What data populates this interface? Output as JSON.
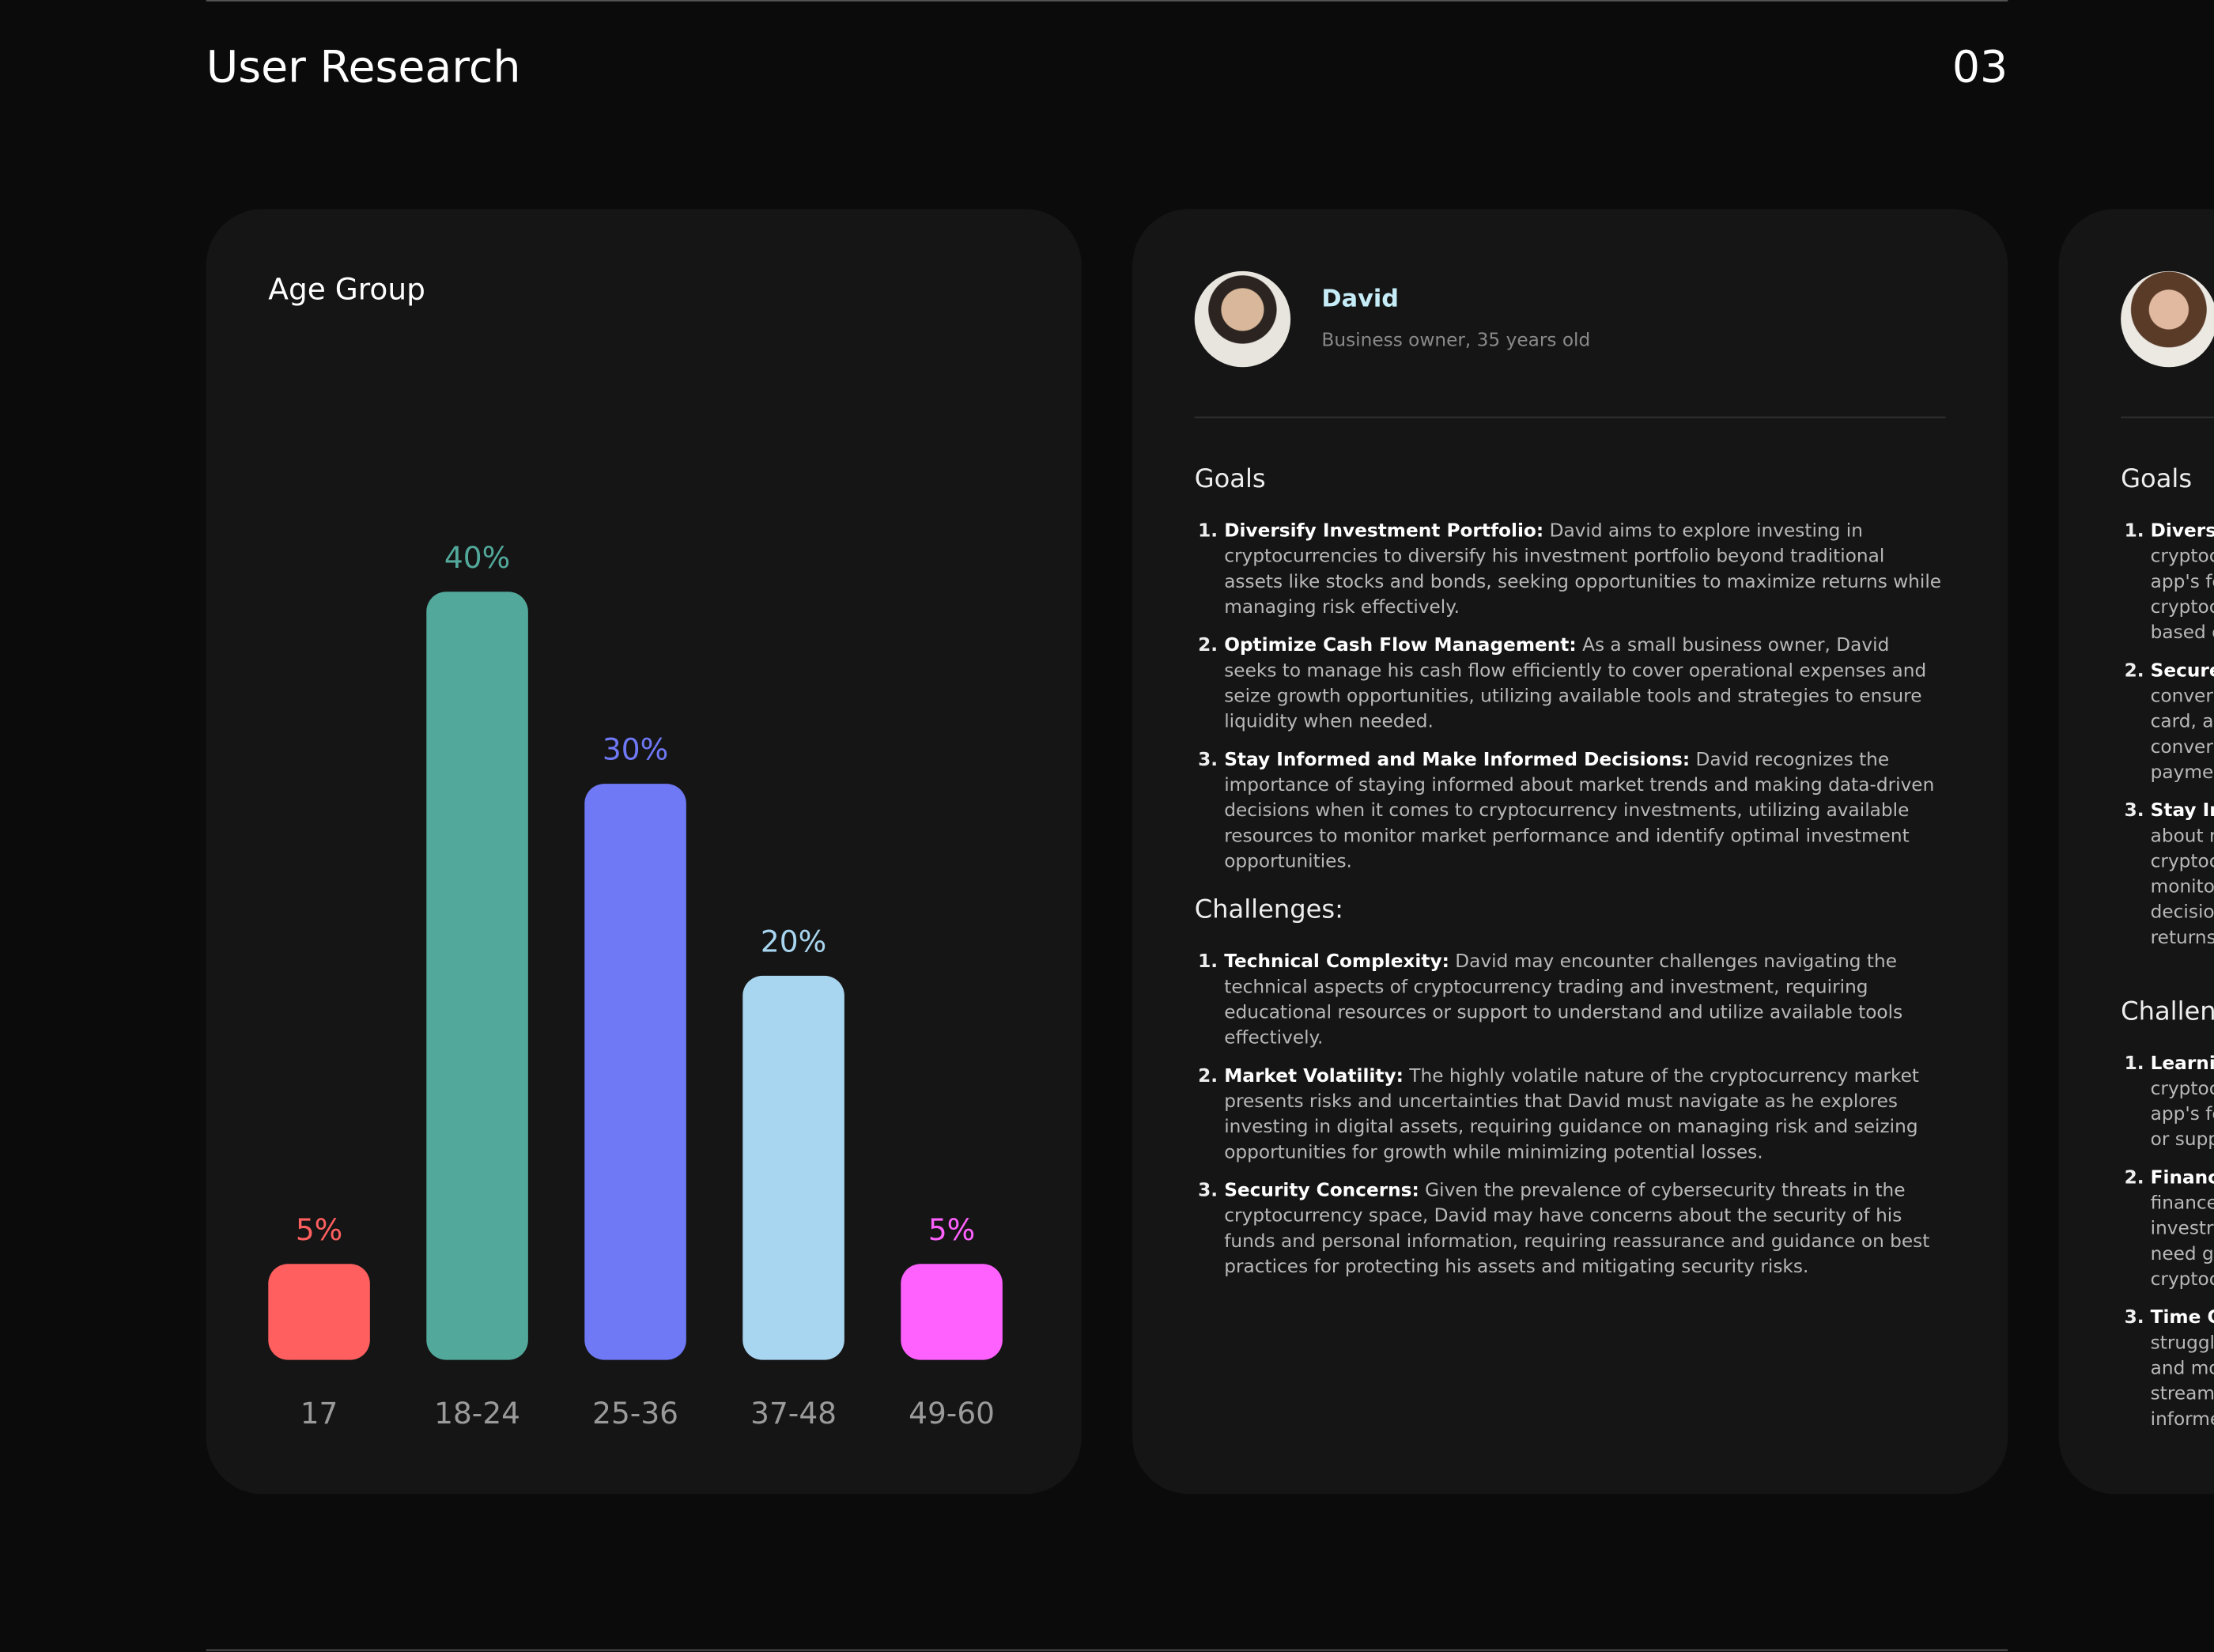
{
  "header": {
    "title": "User Research",
    "page": "03"
  },
  "chart_data": {
    "type": "bar",
    "title": "Age Group",
    "categories": [
      "17",
      "18-24",
      "25-36",
      "37-48",
      "49-60"
    ],
    "values": [
      5,
      40,
      30,
      20,
      5
    ],
    "value_labels": [
      "5%",
      "40%",
      "30%",
      "20%",
      "5%"
    ],
    "colors": [
      "#ff5f5f",
      "#52a99b",
      "#6f78f5",
      "#a8d5ef",
      "#ff61ff"
    ]
  },
  "persona": {
    "name": "David",
    "subtitle": "Business owner, 35 years old",
    "goals_title": "Goals",
    "goals": [
      {
        "title": "Diversify Investment Portfolio:",
        "text": "David aims to explore investing in cryptocurrencies to diversify his investment portfolio beyond traditional assets like stocks and bonds, seeking opportunities to maximize returns while managing risk effectively."
      },
      {
        "title": "Optimize Cash Flow Management:",
        "text": "As a small business owner, David seeks to manage his cash flow efficiently to cover operational expenses and seize growth opportunities, utilizing available tools and strategies to ensure liquidity when needed."
      },
      {
        "title": "Stay Informed and Make Informed Decisions:",
        "text": "David recognizes the importance of staying informed about market trends and making data-driven decisions when it comes to cryptocurrency investments, utilizing available resources to monitor market performance and identify optimal investment opportunities."
      }
    ],
    "challenges_title": "Challenges:",
    "challenges": [
      {
        "title": "Technical Complexity:",
        "text": "David may encounter challenges navigating the technical aspects of cryptocurrency trading and investment, requiring educational resources or support to understand and utilize available tools effectively."
      },
      {
        "title": "Market Volatility:",
        "text": "The highly volatile nature of the cryptocurrency market presents risks and uncertainties that David must navigate as he explores investing in digital assets, requiring guidance on managing risk and seizing opportunities for growth while minimizing potential losses."
      },
      {
        "title": "Security Concerns:",
        "text": "Given the prevalence of cybersecurity threats in the cryptocurrency space, David may have concerns about the security of his funds and personal information, requiring reassurance and guidance on best practices for protecting his assets and mitigating security risks."
      }
    ]
  },
  "persona_partial": {
    "goals_title": "Goals",
    "goals": [
      [
        "Diversi",
        "cryptoc",
        "app's fe",
        "cryptoc",
        "based c"
      ],
      [
        "Secure",
        "conver",
        "card, al",
        "conver",
        "paymer"
      ],
      [
        "Stay In",
        "about r",
        "cryptoc",
        "monito",
        "decisio",
        "returns"
      ]
    ],
    "challenges_title": "Challen",
    "challenges": [
      [
        "Learnin",
        "cryptoc",
        "app's fe",
        "or supp"
      ],
      [
        "Financ",
        "finance",
        "investr",
        "need gu",
        "cryptoc"
      ],
      [
        "Time C",
        "struggl",
        "and mo",
        "stream",
        "informe"
      ]
    ]
  }
}
